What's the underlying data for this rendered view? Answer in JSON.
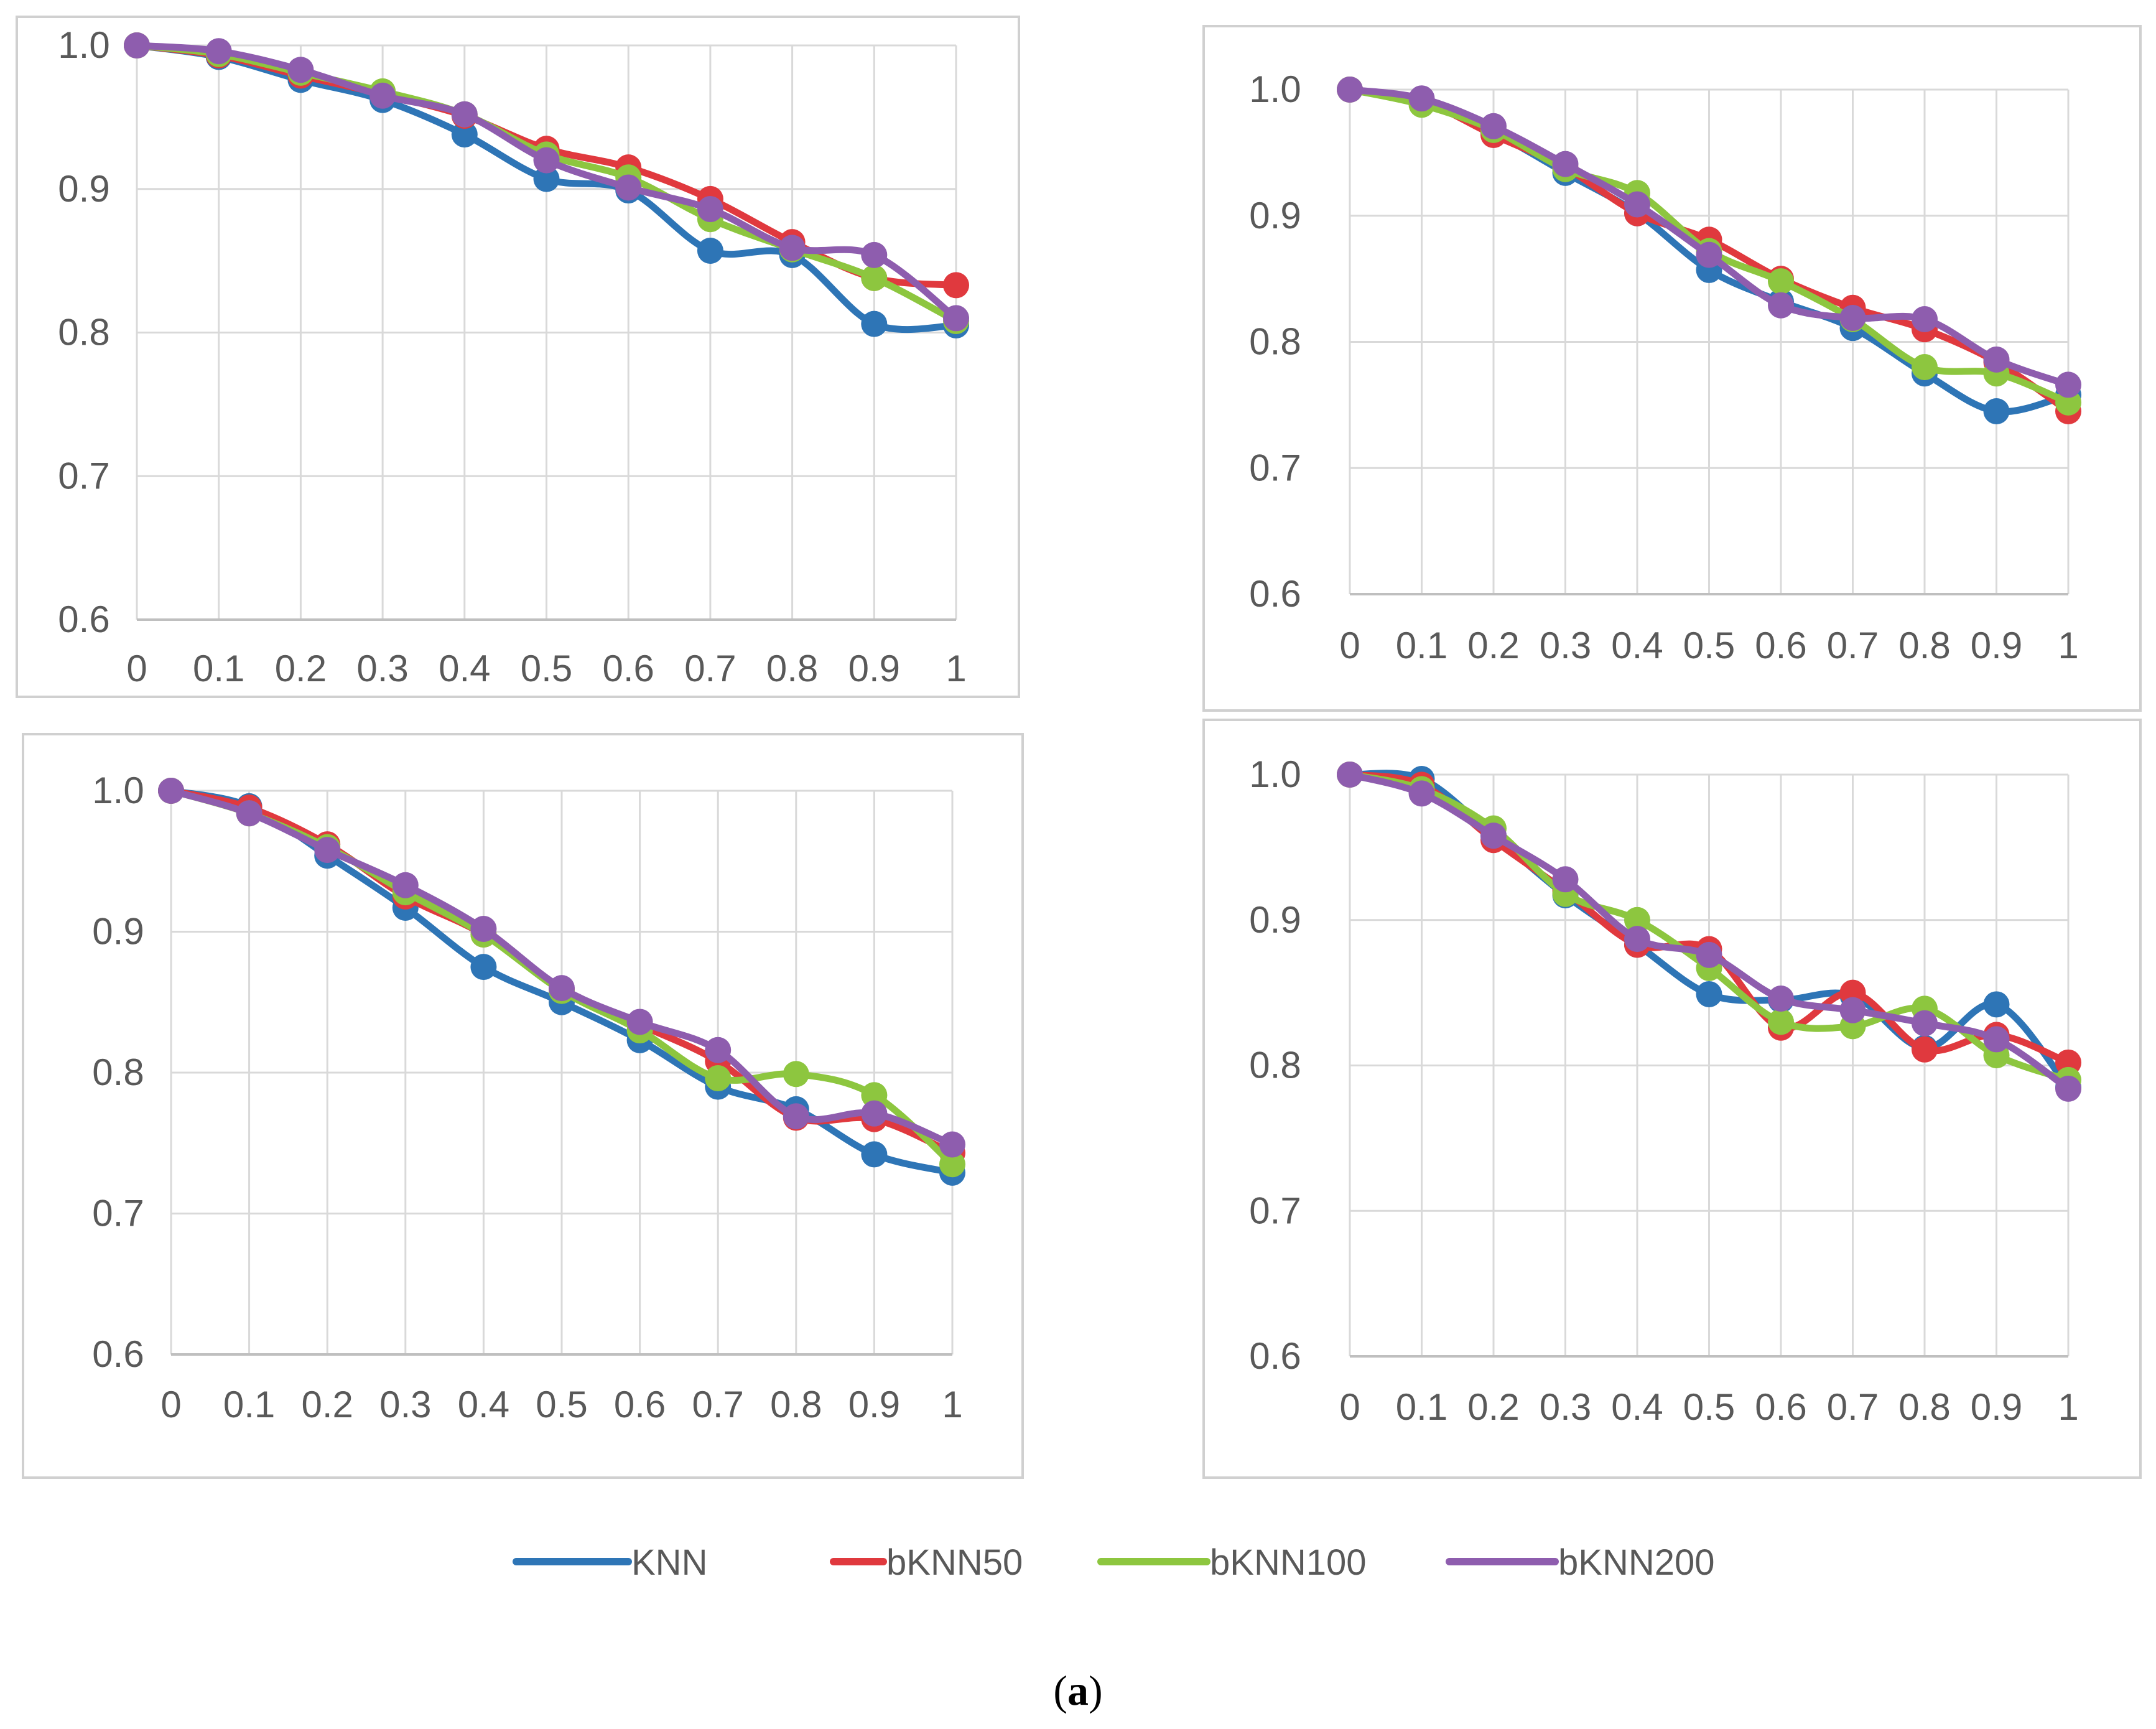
{
  "caption": {
    "open": "(",
    "letter": "a",
    "close": ")"
  },
  "legend": [
    {
      "name": "KNN",
      "color": "#2E75B6"
    },
    {
      "name": "bKNN50",
      "color": "#E0393E"
    },
    {
      "name": "bKNN100",
      "color": "#8DC63F"
    },
    {
      "name": "bKNN200",
      "color": "#8E5DAE"
    }
  ],
  "chart_data": [
    {
      "type": "line",
      "position": "top-left",
      "title": "",
      "xlabel": "",
      "ylabel": "",
      "categories": [
        "0",
        "0.1",
        "0.2",
        "0.3",
        "0.4",
        "0.5",
        "0.6",
        "0.7",
        "0.8",
        "0.9",
        "1"
      ],
      "ylim": [
        0.6,
        1.0
      ],
      "yticks": [
        "0.6",
        "0.7",
        "0.8",
        "0.9",
        "1.0"
      ],
      "grid": true,
      "series": [
        {
          "name": "KNN",
          "values": [
            1.0,
            0.992,
            0.976,
            0.962,
            0.938,
            0.907,
            0.899,
            0.857,
            0.854,
            0.806,
            0.805
          ]
        },
        {
          "name": "bKNN50",
          "values": [
            1.0,
            0.993,
            0.979,
            0.966,
            0.951,
            0.928,
            0.915,
            0.893,
            0.863,
            0.838,
            0.833
          ]
        },
        {
          "name": "bKNN100",
          "values": [
            1.0,
            0.994,
            0.981,
            0.968,
            0.952,
            0.924,
            0.908,
            0.879,
            0.858,
            0.838,
            0.808
          ]
        },
        {
          "name": "bKNN200",
          "values": [
            1.0,
            0.996,
            0.983,
            0.965,
            0.952,
            0.92,
            0.901,
            0.886,
            0.859,
            0.854,
            0.81
          ]
        }
      ]
    },
    {
      "type": "line",
      "position": "top-right",
      "title": "",
      "xlabel": "",
      "ylabel": "",
      "categories": [
        "0",
        "0.1",
        "0.2",
        "0.3",
        "0.4",
        "0.5",
        "0.6",
        "0.7",
        "0.8",
        "0.9",
        "1"
      ],
      "ylim": [
        0.6,
        1.0
      ],
      "yticks": [
        "0.6",
        "0.7",
        "0.8",
        "0.9",
        "1.0"
      ],
      "grid": true,
      "series": [
        {
          "name": "KNN",
          "values": [
            1.0,
            0.99,
            0.966,
            0.934,
            0.902,
            0.857,
            0.832,
            0.811,
            0.775,
            0.745,
            0.758
          ]
        },
        {
          "name": "bKNN50",
          "values": [
            1.0,
            0.991,
            0.964,
            0.938,
            0.902,
            0.881,
            0.85,
            0.827,
            0.81,
            0.784,
            0.745
          ]
        },
        {
          "name": "bKNN100",
          "values": [
            1.0,
            0.988,
            0.968,
            0.937,
            0.918,
            0.872,
            0.848,
            0.818,
            0.78,
            0.775,
            0.752
          ]
        },
        {
          "name": "bKNN200",
          "values": [
            1.0,
            0.993,
            0.971,
            0.941,
            0.909,
            0.869,
            0.829,
            0.819,
            0.818,
            0.786,
            0.766
          ]
        }
      ]
    },
    {
      "type": "line",
      "position": "bottom-left",
      "title": "",
      "xlabel": "",
      "ylabel": "",
      "categories": [
        "0",
        "0.1",
        "0.2",
        "0.3",
        "0.4",
        "0.5",
        "0.6",
        "0.7",
        "0.8",
        "0.9",
        "1"
      ],
      "ylim": [
        0.6,
        1.0
      ],
      "yticks": [
        "0.6",
        "0.7",
        "0.8",
        "0.9",
        "1.0"
      ],
      "grid": true,
      "series": [
        {
          "name": "KNN",
          "values": [
            1.0,
            0.989,
            0.954,
            0.917,
            0.875,
            0.85,
            0.823,
            0.79,
            0.774,
            0.742,
            0.729
          ]
        },
        {
          "name": "bKNN50",
          "values": [
            1.0,
            0.988,
            0.962,
            0.925,
            0.898,
            0.859,
            0.834,
            0.808,
            0.768,
            0.767,
            0.743
          ]
        },
        {
          "name": "bKNN100",
          "values": [
            1.0,
            0.984,
            0.96,
            0.928,
            0.898,
            0.858,
            0.83,
            0.796,
            0.799,
            0.784,
            0.735
          ]
        },
        {
          "name": "bKNN200",
          "values": [
            1.0,
            0.984,
            0.958,
            0.933,
            0.902,
            0.86,
            0.836,
            0.816,
            0.769,
            0.771,
            0.749
          ]
        }
      ]
    },
    {
      "type": "line",
      "position": "bottom-right",
      "title": "",
      "xlabel": "",
      "ylabel": "",
      "categories": [
        "0",
        "0.1",
        "0.2",
        "0.3",
        "0.4",
        "0.5",
        "0.6",
        "0.7",
        "0.8",
        "0.9",
        "1"
      ],
      "ylim": [
        0.6,
        1.0
      ],
      "yticks": [
        "0.6",
        "0.7",
        "0.8",
        "0.9",
        "1.0"
      ],
      "grid": true,
      "series": [
        {
          "name": "KNN",
          "values": [
            1.0,
            0.997,
            0.958,
            0.917,
            0.883,
            0.849,
            0.845,
            0.848,
            0.812,
            0.842,
            0.785
          ]
        },
        {
          "name": "bKNN50",
          "values": [
            1.0,
            0.993,
            0.955,
            0.92,
            0.883,
            0.88,
            0.826,
            0.85,
            0.811,
            0.821,
            0.802
          ]
        },
        {
          "name": "bKNN100",
          "values": [
            1.0,
            0.99,
            0.963,
            0.918,
            0.9,
            0.867,
            0.83,
            0.827,
            0.839,
            0.807,
            0.79
          ]
        },
        {
          "name": "bKNN200",
          "values": [
            1.0,
            0.987,
            0.958,
            0.928,
            0.887,
            0.876,
            0.846,
            0.838,
            0.829,
            0.818,
            0.784
          ]
        }
      ]
    }
  ]
}
